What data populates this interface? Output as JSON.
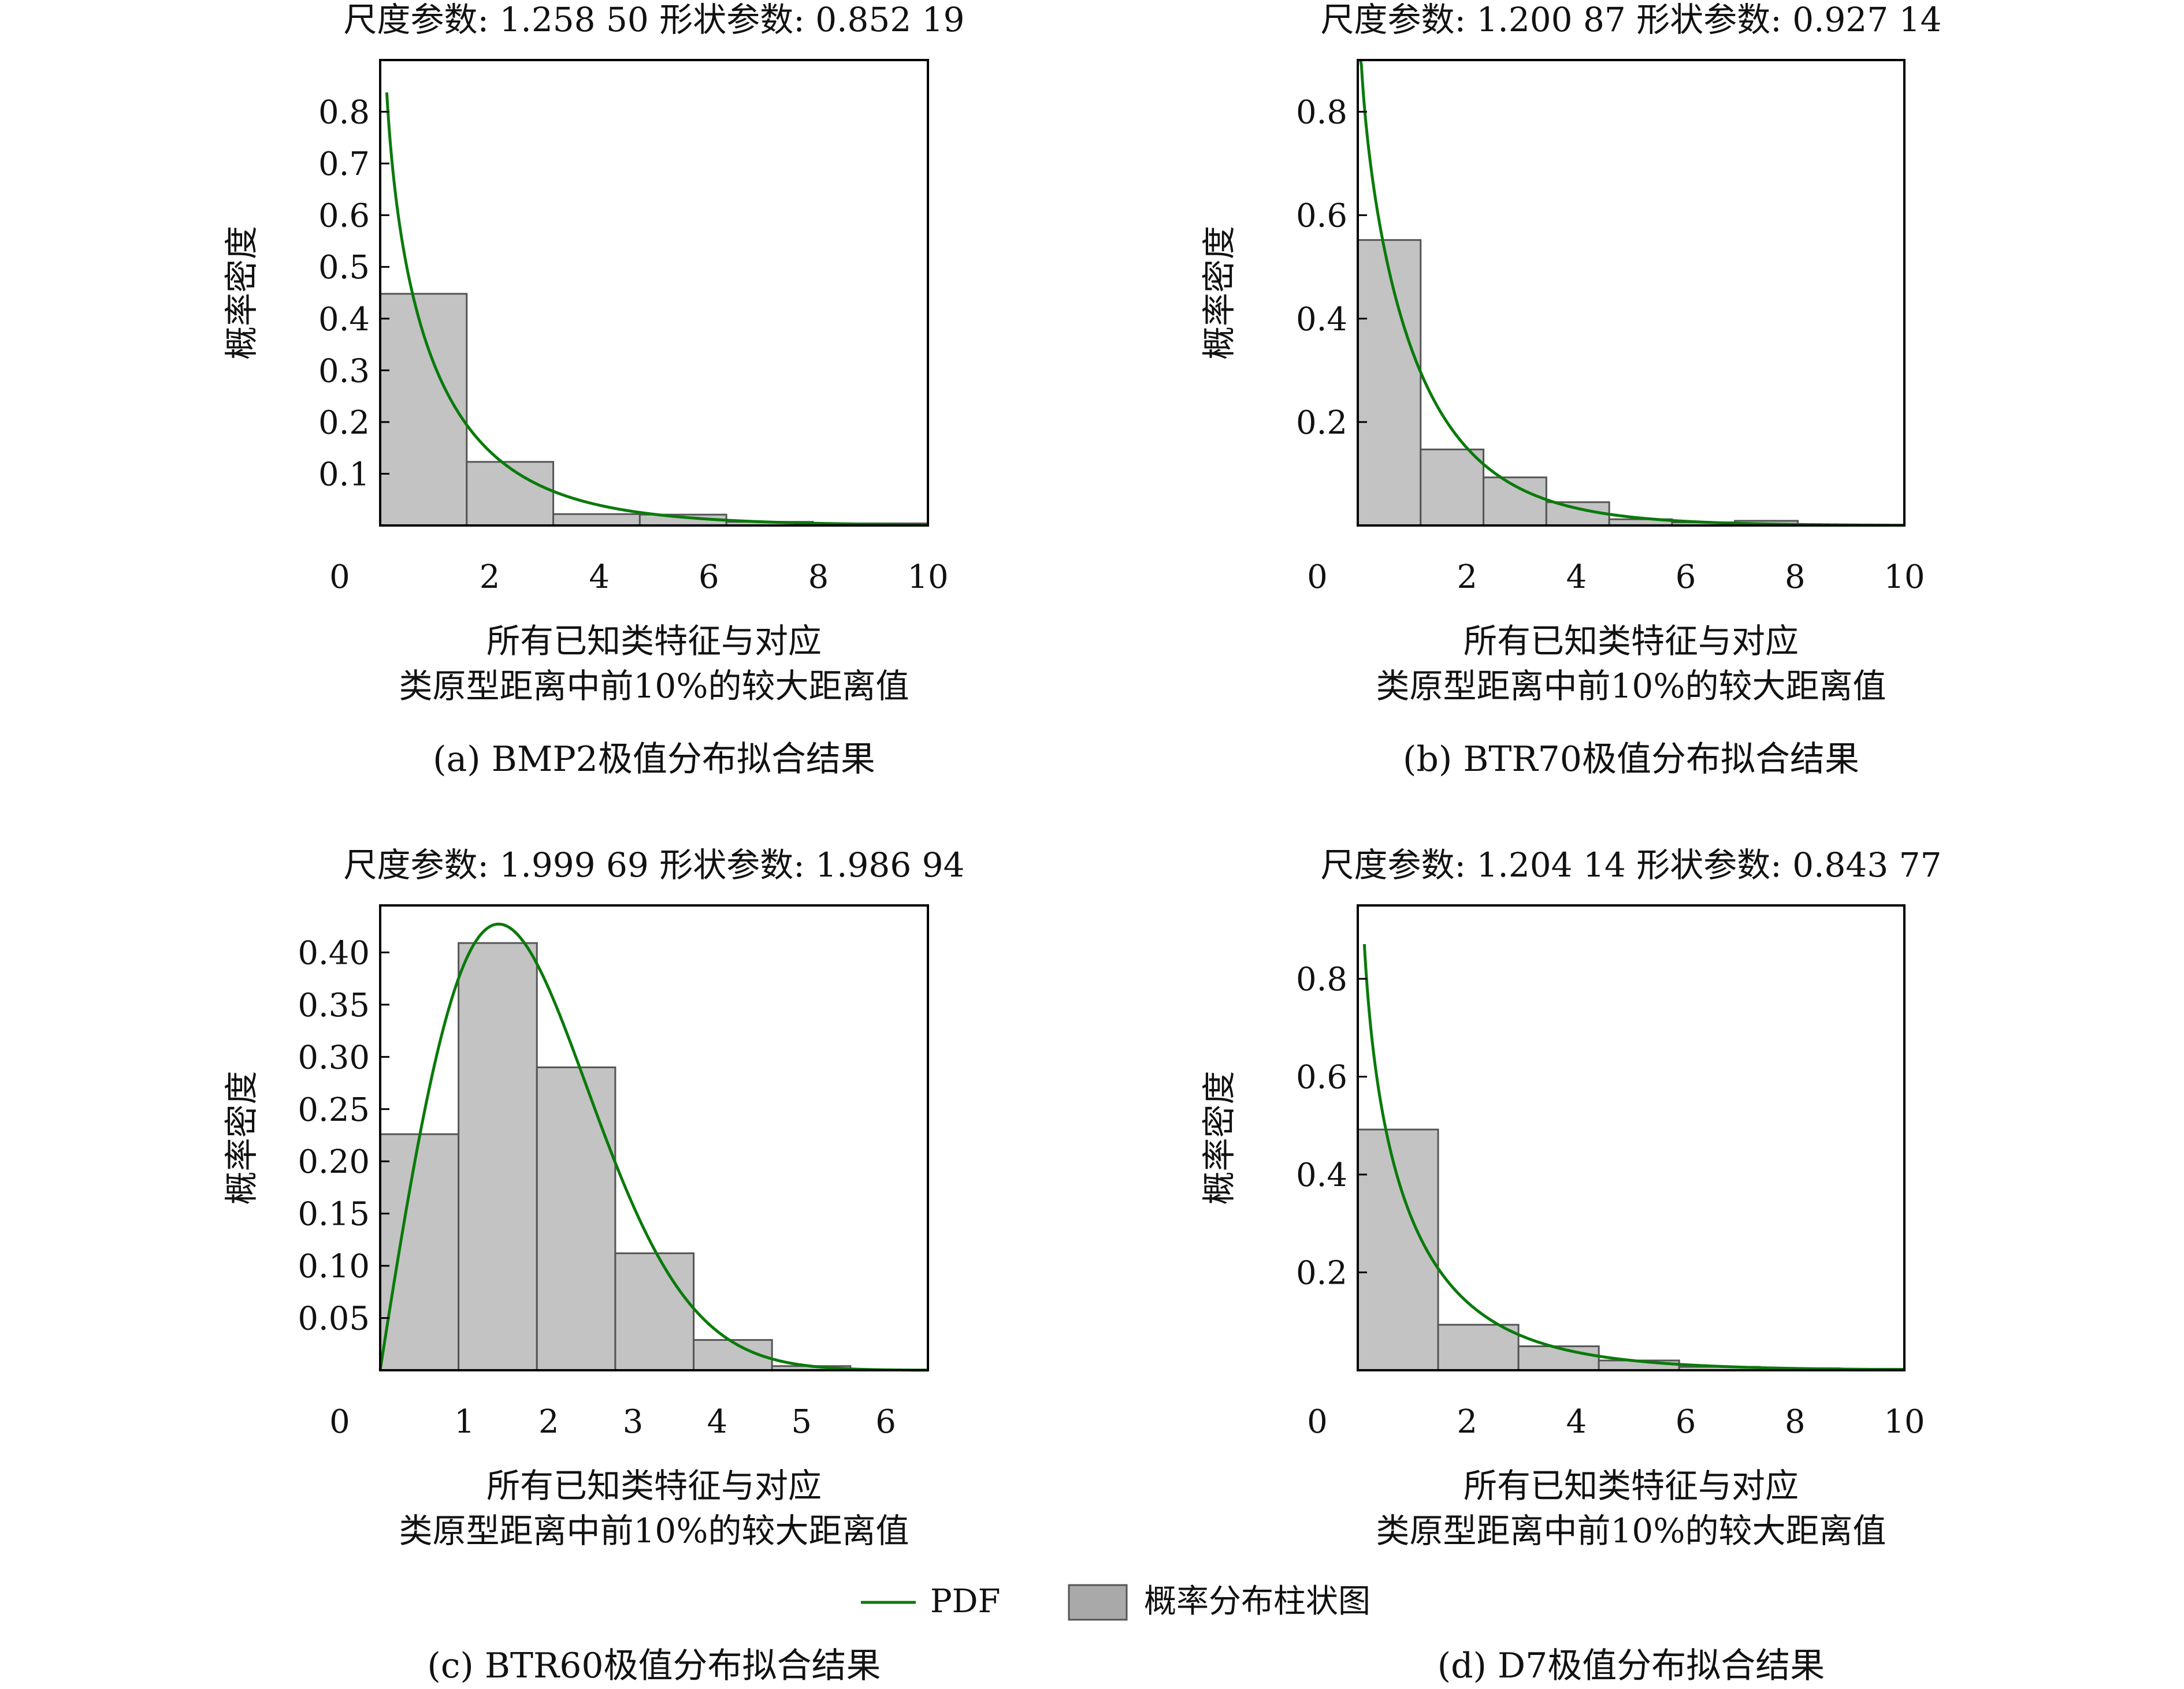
{
  "colors": {
    "bar_fill": "#c3c3c3",
    "bar_stroke": "#555555",
    "pdf_line": "#0a7a0a",
    "axis": "#000000"
  },
  "legend": {
    "pdf_label": "PDF",
    "hist_label": "概率分布柱状图",
    "placement": "bottom-center"
  },
  "chart_data": [
    {
      "type": "bar",
      "title": "尺度参数: 1.258 50   形状参数: 0.852 19",
      "caption": "(a) BMP2极值分布拟合结果",
      "xlabel_lines": [
        "所有已知类特征与对应",
        "类原型距离中前10%的较大距离值"
      ],
      "ylabel": "概率密度",
      "xlim": [
        0,
        10
      ],
      "ylim": [
        0,
        0.9
      ],
      "x_ticks": [
        0,
        2,
        4,
        6,
        8,
        10
      ],
      "y_ticks": [
        0.1,
        0.2,
        0.3,
        0.4,
        0.5,
        0.6,
        0.7,
        0.8
      ],
      "y_tick_labels": [
        "0.1",
        "0.2",
        "0.3",
        "0.4",
        "0.5",
        "0.6",
        "0.7",
        "0.8"
      ],
      "bins": [
        {
          "x0": 0.0,
          "x1": 1.58,
          "value": 0.448
        },
        {
          "x0": 1.58,
          "x1": 3.16,
          "value": 0.123
        },
        {
          "x0": 3.16,
          "x1": 4.74,
          "value": 0.022
        },
        {
          "x0": 4.74,
          "x1": 6.32,
          "value": 0.021
        },
        {
          "x0": 6.32,
          "x1": 7.9,
          "value": 0.007
        },
        {
          "x0": 7.9,
          "x1": 9.48,
          "value": 0.004
        },
        {
          "x0": 9.48,
          "x1": 10.0,
          "value": 0.004
        }
      ],
      "pdf": {
        "distribution": "weibull",
        "scale": 1.2585,
        "shape": 0.85219,
        "x_start": 0.12,
        "x_end": 10.0
      }
    },
    {
      "type": "bar",
      "title": "尺度参数: 1.200 87   形状参数: 0.927 14",
      "caption": "(b) BTR70极值分布拟合结果",
      "xlabel_lines": [
        "所有已知类特征与对应",
        "类原型距离中前10%的较大距离值"
      ],
      "ylabel": "概率密度",
      "xlim": [
        0,
        10
      ],
      "ylim": [
        0,
        0.9
      ],
      "x_ticks": [
        0,
        2,
        4,
        6,
        8,
        10
      ],
      "y_ticks": [
        0.2,
        0.4,
        0.6,
        0.8
      ],
      "y_tick_labels": [
        "0.2",
        "0.4",
        "0.6",
        "0.8"
      ],
      "bins": [
        {
          "x0": 0.0,
          "x1": 1.15,
          "value": 0.552
        },
        {
          "x0": 1.15,
          "x1": 2.3,
          "value": 0.147
        },
        {
          "x0": 2.3,
          "x1": 3.45,
          "value": 0.093
        },
        {
          "x0": 3.45,
          "x1": 4.6,
          "value": 0.045
        },
        {
          "x0": 4.6,
          "x1": 5.75,
          "value": 0.012
        },
        {
          "x0": 5.75,
          "x1": 6.9,
          "value": 0.006
        },
        {
          "x0": 6.9,
          "x1": 8.05,
          "value": 0.009
        }
      ],
      "pdf": {
        "distribution": "weibull",
        "scale": 1.20087,
        "shape": 0.92714,
        "x_start": 0.05,
        "x_end": 10.0
      }
    },
    {
      "type": "bar",
      "title": "尺度参数: 1.999 69   形状参数: 1.986 94",
      "caption": "(c) BTR60极值分布拟合结果",
      "xlabel_lines": [
        "所有已知类特征与对应",
        "类原型距离中前10%的较大距离值"
      ],
      "ylabel": "概率密度",
      "xlim": [
        0,
        6.5
      ],
      "ylim": [
        0,
        0.445
      ],
      "x_ticks": [
        0,
        1,
        2,
        3,
        4,
        5,
        6
      ],
      "y_ticks": [
        0.05,
        0.1,
        0.15,
        0.2,
        0.25,
        0.3,
        0.35,
        0.4
      ],
      "y_tick_labels": [
        "0.05",
        "0.10",
        "0.15",
        "0.20",
        "0.25",
        "0.30",
        "0.35",
        "0.40"
      ],
      "bins": [
        {
          "x0": 0.0,
          "x1": 0.93,
          "value": 0.226
        },
        {
          "x0": 0.93,
          "x1": 1.86,
          "value": 0.409
        },
        {
          "x0": 1.86,
          "x1": 2.79,
          "value": 0.29
        },
        {
          "x0": 2.79,
          "x1": 3.72,
          "value": 0.112
        },
        {
          "x0": 3.72,
          "x1": 4.65,
          "value": 0.029
        },
        {
          "x0": 4.65,
          "x1": 5.58,
          "value": 0.004
        }
      ],
      "pdf": {
        "distribution": "weibull",
        "scale": 1.99969,
        "shape": 1.98694,
        "x_start": 0.0,
        "x_end": 6.5
      }
    },
    {
      "type": "bar",
      "title": "尺度参数: 1.204 14   形状参数: 0.843 77",
      "caption": "(d) D7极值分布拟合结果",
      "xlabel_lines": [
        "所有已知类特征与对应",
        "类原型距离中前10%的较大距离值"
      ],
      "ylabel": "概率密度",
      "xlim": [
        0,
        10
      ],
      "ylim": [
        0,
        0.95
      ],
      "x_ticks": [
        0,
        2,
        4,
        6,
        8,
        10
      ],
      "y_ticks": [
        0.2,
        0.4,
        0.6,
        0.8
      ],
      "y_tick_labels": [
        "0.2",
        "0.4",
        "0.6",
        "0.8"
      ],
      "bins": [
        {
          "x0": 0.0,
          "x1": 1.47,
          "value": 0.492
        },
        {
          "x0": 1.47,
          "x1": 2.94,
          "value": 0.093
        },
        {
          "x0": 2.94,
          "x1": 4.41,
          "value": 0.049
        },
        {
          "x0": 4.41,
          "x1": 5.88,
          "value": 0.02
        },
        {
          "x0": 5.88,
          "x1": 7.35,
          "value": 0.007
        },
        {
          "x0": 7.35,
          "x1": 8.82,
          "value": 0.004
        },
        {
          "x0": 8.82,
          "x1": 10.0,
          "value": 0.003
        }
      ],
      "pdf": {
        "distribution": "weibull",
        "scale": 1.20414,
        "shape": 0.84377,
        "x_start": 0.12,
        "x_end": 10.0
      }
    }
  ]
}
